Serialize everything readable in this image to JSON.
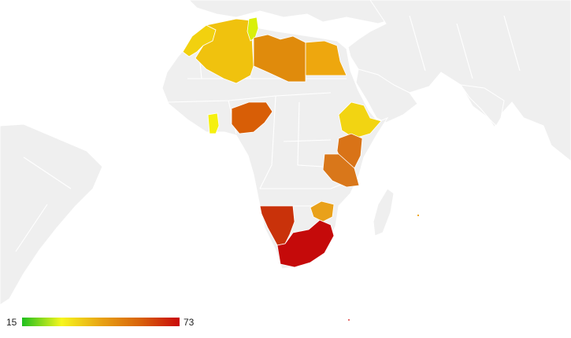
{
  "legend": {
    "min_label": "15",
    "max_label": "73",
    "gradient_colors": [
      "#1fbf1f",
      "#f6f61e",
      "#e8a313",
      "#d8620a",
      "#c90a0a"
    ]
  },
  "colors": {
    "land": "#efefef",
    "water": "#ffffff",
    "border": "#ffffff"
  },
  "regions": [
    {
      "id": "morocco",
      "color": "#f2d10f"
    },
    {
      "id": "algeria",
      "color": "#f0c20e"
    },
    {
      "id": "tunisia",
      "color": "#d9f00a"
    },
    {
      "id": "libya",
      "color": "#e08b0c"
    },
    {
      "id": "egypt",
      "color": "#eea70e"
    },
    {
      "id": "ghana",
      "color": "#f5f00f"
    },
    {
      "id": "nigeria",
      "color": "#d85e06"
    },
    {
      "id": "ethiopia",
      "color": "#f2d412"
    },
    {
      "id": "kenya",
      "color": "#d97317"
    },
    {
      "id": "tanzania",
      "color": "#d9771a"
    },
    {
      "id": "namibia",
      "color": "#c9320a"
    },
    {
      "id": "zimbabwe",
      "color": "#e9a11a"
    },
    {
      "id": "south-africa",
      "color": "#c50a0a"
    },
    {
      "id": "mauritius",
      "color": "#eea00e"
    }
  ]
}
